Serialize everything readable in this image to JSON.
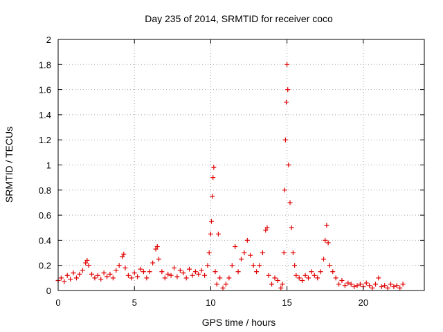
{
  "chart_data": {
    "type": "scatter",
    "title": "Day 235 of 2014, SRMTID for receiver coco",
    "xlabel": "GPS time / hours",
    "ylabel": "SRMTID / TECUs",
    "xlim": [
      0,
      24
    ],
    "ylim": [
      0,
      2
    ],
    "xticks": [
      0,
      5,
      10,
      15,
      20
    ],
    "yticks": [
      0,
      0.2,
      0.4,
      0.6,
      0.8,
      1,
      1.2,
      1.4,
      1.6,
      1.8,
      2
    ],
    "xtick_labels": [
      "0",
      "5",
      "10",
      "15",
      "20"
    ],
    "ytick_labels": [
      "0",
      "0.2",
      "0.4",
      "0.6",
      "0.8",
      "1",
      "1.2",
      "1.4",
      "1.6",
      "1.8",
      "2"
    ],
    "grid": true,
    "marker": "+",
    "color": "#e00000",
    "series": [
      {
        "name": "SRMTID",
        "x": [
          0.0,
          0.2,
          0.4,
          0.6,
          0.8,
          1.0,
          1.2,
          1.4,
          1.6,
          1.8,
          1.9,
          2.0,
          2.2,
          2.4,
          2.6,
          2.8,
          3.0,
          3.2,
          3.4,
          3.6,
          3.8,
          4.0,
          4.2,
          4.3,
          4.4,
          4.6,
          4.8,
          5.0,
          5.2,
          5.4,
          5.6,
          5.8,
          6.0,
          6.2,
          6.4,
          6.5,
          6.6,
          6.8,
          7.0,
          7.2,
          7.4,
          7.6,
          7.8,
          8.0,
          8.2,
          8.4,
          8.6,
          8.8,
          9.0,
          9.2,
          9.4,
          9.6,
          9.8,
          9.9,
          10.0,
          10.05,
          10.1,
          10.15,
          10.2,
          10.3,
          10.4,
          10.5,
          10.6,
          10.8,
          11.0,
          11.2,
          11.4,
          11.6,
          11.8,
          12.0,
          12.2,
          12.4,
          12.6,
          12.8,
          13.0,
          13.2,
          13.4,
          13.6,
          13.7,
          13.8,
          14.0,
          14.2,
          14.4,
          14.6,
          14.7,
          14.8,
          14.85,
          14.9,
          14.95,
          15.0,
          15.05,
          15.1,
          15.2,
          15.3,
          15.4,
          15.5,
          15.6,
          15.8,
          16.0,
          16.2,
          16.4,
          16.6,
          16.8,
          17.0,
          17.2,
          17.4,
          17.5,
          17.6,
          17.7,
          17.8,
          18.0,
          18.2,
          18.4,
          18.6,
          18.8,
          19.0,
          19.2,
          19.4,
          19.6,
          19.8,
          20.0,
          20.2,
          20.4,
          20.6,
          20.8,
          21.0,
          21.2,
          21.4,
          21.6,
          21.8,
          22.0,
          22.2,
          22.4,
          22.6
        ],
        "y": [
          0.08,
          0.1,
          0.07,
          0.12,
          0.09,
          0.14,
          0.1,
          0.13,
          0.16,
          0.22,
          0.24,
          0.2,
          0.13,
          0.1,
          0.12,
          0.09,
          0.14,
          0.11,
          0.13,
          0.1,
          0.16,
          0.2,
          0.27,
          0.29,
          0.18,
          0.12,
          0.1,
          0.14,
          0.11,
          0.17,
          0.15,
          0.1,
          0.15,
          0.22,
          0.33,
          0.35,
          0.25,
          0.15,
          0.1,
          0.13,
          0.12,
          0.18,
          0.11,
          0.16,
          0.14,
          0.1,
          0.17,
          0.12,
          0.15,
          0.13,
          0.16,
          0.12,
          0.2,
          0.3,
          0.45,
          0.55,
          0.75,
          0.9,
          0.98,
          0.15,
          0.05,
          0.45,
          0.1,
          0.02,
          0.05,
          0.1,
          0.2,
          0.35,
          0.15,
          0.25,
          0.3,
          0.4,
          0.28,
          0.2,
          0.15,
          0.2,
          0.3,
          0.48,
          0.5,
          0.12,
          0.05,
          0.1,
          0.08,
          0.02,
          0.05,
          0.3,
          0.8,
          1.2,
          1.5,
          1.8,
          1.6,
          1.0,
          0.7,
          0.5,
          0.3,
          0.2,
          0.12,
          0.1,
          0.08,
          0.12,
          0.1,
          0.15,
          0.12,
          0.1,
          0.15,
          0.25,
          0.4,
          0.52,
          0.38,
          0.2,
          0.15,
          0.1,
          0.05,
          0.08,
          0.04,
          0.06,
          0.05,
          0.03,
          0.04,
          0.05,
          0.03,
          0.06,
          0.04,
          0.02,
          0.05,
          0.1,
          0.03,
          0.04,
          0.02,
          0.05,
          0.03,
          0.04,
          0.02,
          0.05
        ]
      }
    ]
  }
}
